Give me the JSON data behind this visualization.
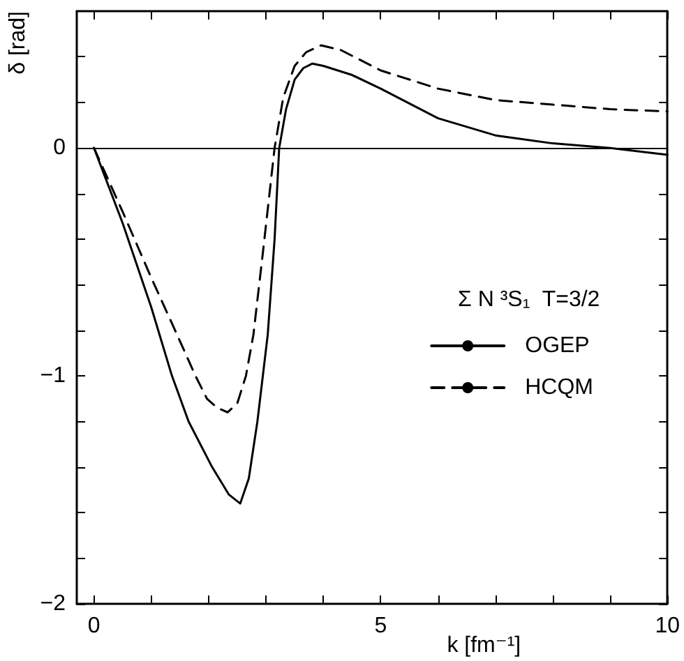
{
  "chart_data": {
    "type": "line",
    "xlabel": "k [fm⁻¹]",
    "ylabel": "δ [rad]",
    "legend_title": "Σ N ³S₁  T=3/2",
    "xlim": [
      -0.3,
      10
    ],
    "ylim": [
      -2,
      0.6
    ],
    "xticks": [
      0,
      {
        "value": 1,
        "label": null
      },
      {
        "value": 2,
        "label": null
      },
      {
        "value": 3,
        "label": null
      },
      {
        "value": 4,
        "label": null
      },
      5,
      {
        "value": 6,
        "label": null
      },
      {
        "value": 7,
        "label": null
      },
      {
        "value": 8,
        "label": null
      },
      {
        "value": 9,
        "label": null
      },
      10
    ],
    "yticks": [
      -2,
      {
        "value": -1.8,
        "label": null
      },
      {
        "value": -1.6,
        "label": null
      },
      {
        "value": -1.4,
        "label": null
      },
      {
        "value": -1.2,
        "label": null
      },
      -1,
      {
        "value": -0.8,
        "label": null
      },
      {
        "value": -0.6,
        "label": null
      },
      {
        "value": -0.4,
        "label": null
      },
      {
        "value": -0.2,
        "label": null
      },
      0,
      {
        "value": 0.2,
        "label": null
      },
      {
        "value": 0.4,
        "label": null
      }
    ],
    "grid": false,
    "legend": "right",
    "marker": "none",
    "ref_lines": [
      {
        "axis": "y",
        "value": 0,
        "label": null,
        "color": "#000000"
      }
    ],
    "series": [
      {
        "name": "OGEP",
        "color": "#000000",
        "line_style": "solid",
        "x": [
          0,
          0.5,
          1,
          1.36,
          1.65,
          2.06,
          2.35,
          2.55,
          2.7,
          2.85,
          3.03,
          3.15,
          3.23,
          3.35,
          3.5,
          3.65,
          3.81,
          4.0,
          4.5,
          5,
          6,
          7,
          8,
          9,
          10
        ],
        "values": [
          0,
          -0.33,
          -0.7,
          -1.0,
          -1.2,
          -1.4,
          -1.52,
          -1.56,
          -1.45,
          -1.2,
          -0.82,
          -0.4,
          0,
          0.17,
          0.3,
          0.35,
          0.37,
          0.36,
          0.32,
          0.26,
          0.13,
          0.055,
          0.02,
          0,
          -0.03
        ]
      },
      {
        "name": "HCQM",
        "color": "#000000",
        "line_style": "dashed",
        "x": [
          0,
          0.5,
          1,
          1.45,
          1.77,
          1.97,
          2.15,
          2.33,
          2.5,
          2.65,
          2.78,
          2.95,
          3.15,
          3.3,
          3.5,
          3.7,
          3.96,
          4.3,
          5,
          6,
          7,
          8,
          9,
          10
        ],
        "values": [
          0,
          -0.28,
          -0.57,
          -0.82,
          -1.0,
          -1.1,
          -1.14,
          -1.16,
          -1.12,
          -1.0,
          -0.82,
          -0.45,
          0,
          0.22,
          0.36,
          0.42,
          0.45,
          0.43,
          0.34,
          0.26,
          0.21,
          0.19,
          0.17,
          0.16
        ]
      }
    ]
  }
}
